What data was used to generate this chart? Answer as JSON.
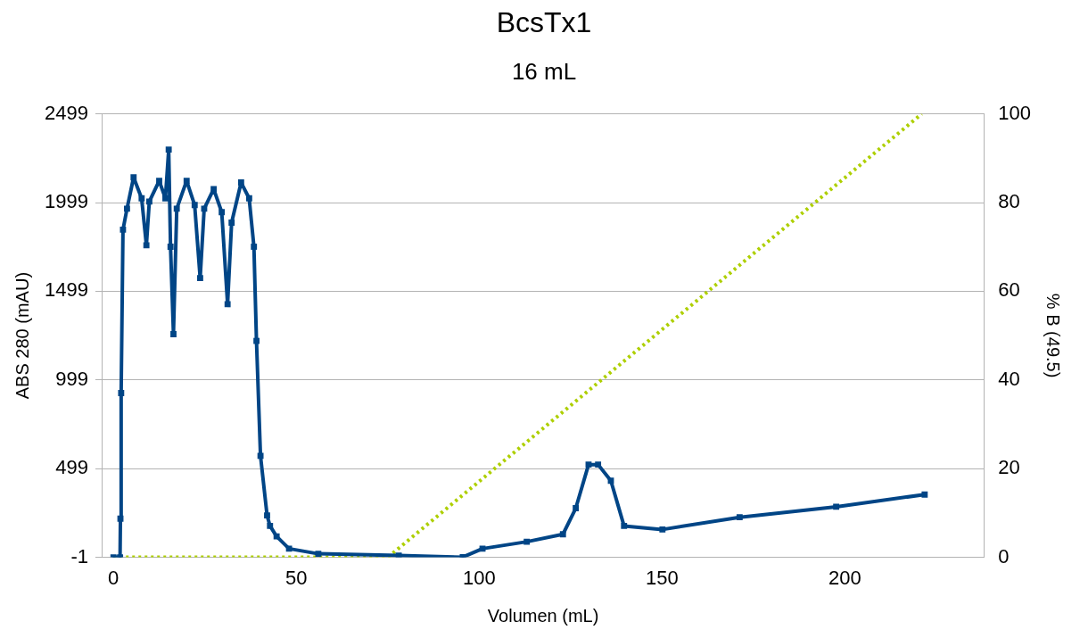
{
  "chart_data": {
    "type": "line",
    "title": "BcsTx1",
    "subtitle": "16 mL",
    "xlabel": "Volumen (mL)",
    "ylabel": "ABS 280 (mAU)",
    "y2label": "% B (49.5)",
    "xlim": [
      -3,
      238
    ],
    "xticks": [
      0,
      50,
      100,
      150,
      200
    ],
    "ylim": [
      -1,
      2499
    ],
    "yticks": [
      -1,
      499,
      999,
      1499,
      1999,
      2499
    ],
    "y2lim": [
      0,
      100
    ],
    "y2ticks": [
      0,
      20,
      40,
      60,
      80,
      100
    ],
    "grid": "y",
    "legend": false,
    "series": [
      {
        "type": "line",
        "color": "#004586",
        "marker": "square",
        "line_style": "solid",
        "x": [
          0,
          1.8,
          1.9,
          2.1,
          2.6,
          3.7,
          5.5,
          7.7,
          9.0,
          9.8,
          12.5,
          14.2,
          15.1,
          15.6,
          16.4,
          17.3,
          20.0,
          22.2,
          23.7,
          24.8,
          27.4,
          29.6,
          31.2,
          32.3,
          34.9,
          37.1,
          38.4,
          39.1,
          40.2,
          42.0,
          42.8,
          44.6,
          48,
          56,
          78,
          95.5,
          100.9,
          113,
          122.9,
          126.4,
          129.9,
          132.5,
          136,
          139.6,
          150.1,
          171.2,
          197.6,
          221.8
        ],
        "values": [
          -1,
          -1,
          217,
          925,
          1846,
          1964,
          2141,
          2023,
          1758,
          2005,
          2122,
          2023,
          2298,
          1750,
          1257,
          1964,
          2122,
          1985,
          1573,
          1964,
          2075,
          1945,
          1426,
          1886,
          2112,
          2023,
          1750,
          1219,
          571,
          235,
          176,
          117,
          48,
          19,
          9,
          0,
          48,
          87,
          129,
          276,
          522,
          522,
          431,
          176,
          156,
          225,
          284,
          353
        ]
      },
      {
        "type": "line",
        "color": "#aecf00",
        "marker": "none",
        "line_style": "dotted",
        "axis": "y2",
        "x": [
          0,
          75,
          221
        ],
        "values": [
          0,
          0,
          100
        ]
      }
    ]
  }
}
